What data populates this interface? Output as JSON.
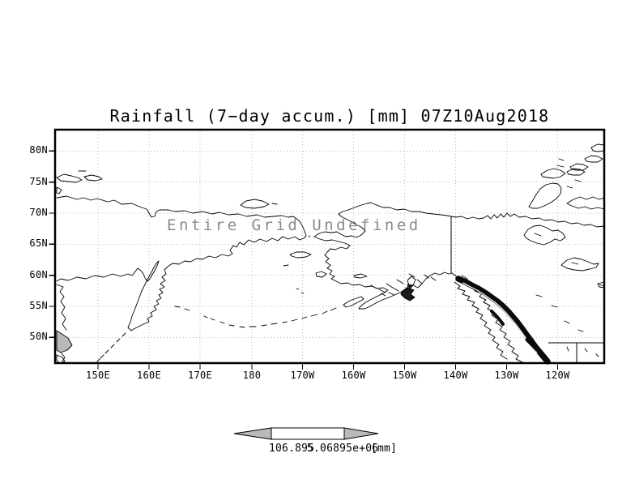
{
  "title": "Rainfall (7−day accum.) [mm] 07Z10Aug2018",
  "overlay_message": "Entire Grid Undefined",
  "axes": {
    "lat_labels": [
      "80N",
      "75N",
      "70N",
      "65N",
      "60N",
      "55N",
      "50N"
    ],
    "lon_labels": [
      "150E",
      "160E",
      "170E",
      "180",
      "170W",
      "160W",
      "150W",
      "140W",
      "130W",
      "120W"
    ]
  },
  "colorbar": {
    "min_label": "106.895",
    "max_label": "5.06895e+06",
    "unit_label": "[mm]"
  },
  "colors": {
    "coastline": "#000000",
    "gridline": "#b8b8b8",
    "overlay_text": "#8a8a8a",
    "arrow_fill": "#b9b9b9",
    "background": "#ffffff"
  }
}
